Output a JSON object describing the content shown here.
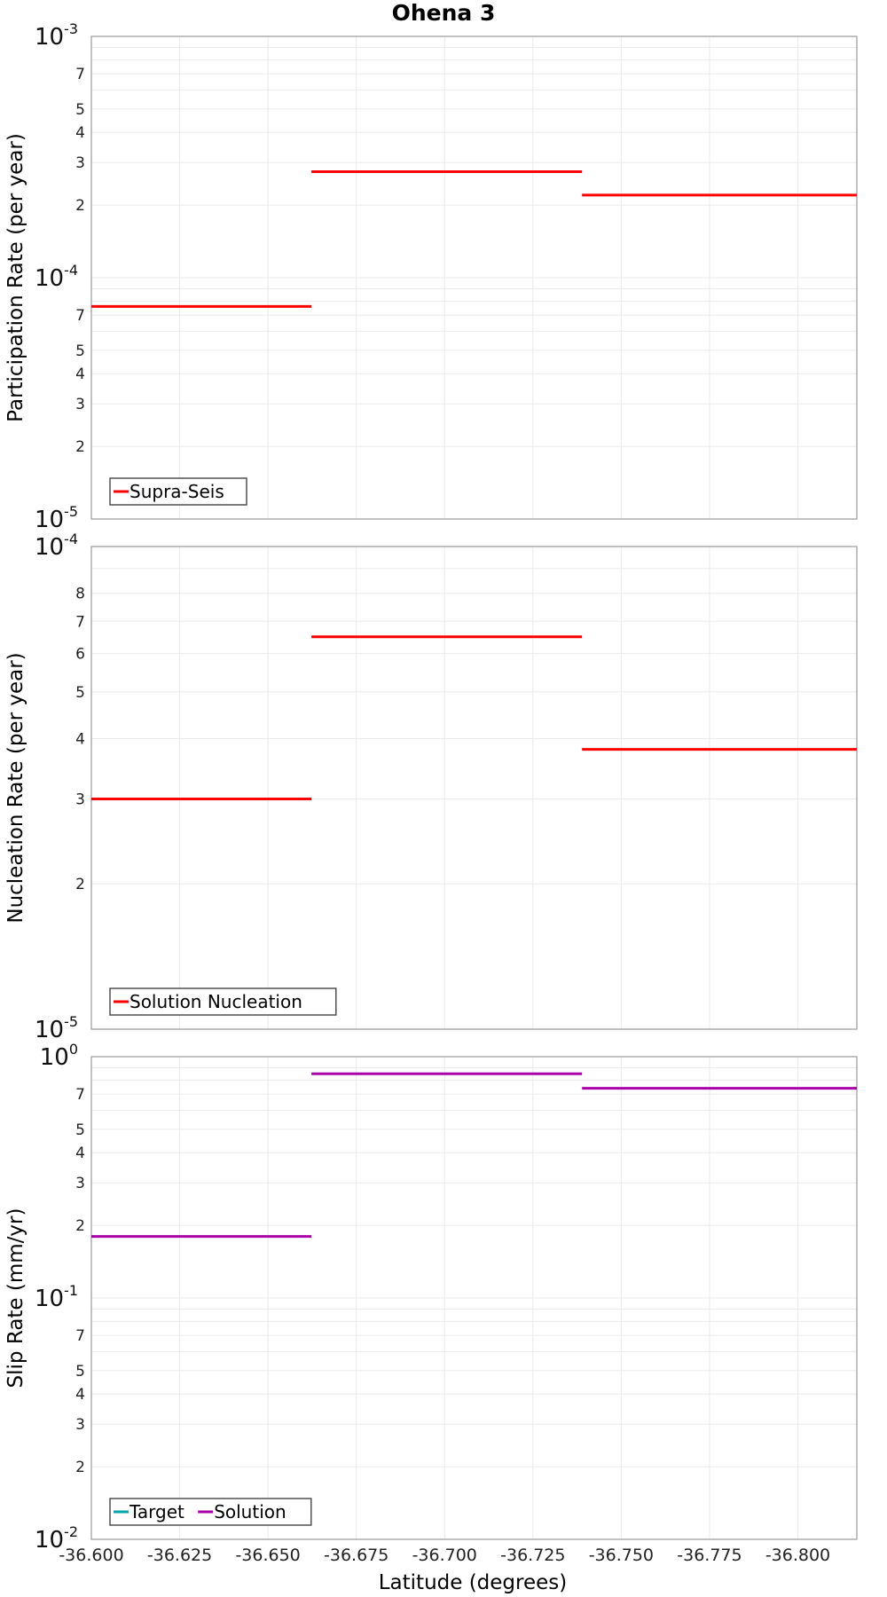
{
  "figure": {
    "title": "Ohena 3",
    "xlabel": "Latitude (degrees)"
  },
  "chart_data": [
    {
      "type": "line",
      "title": "Ohena 3",
      "xlabel": "Latitude (degrees)",
      "ylabel": "Participation Rate (per year)",
      "xlim": [
        -36.6,
        -36.8167
      ],
      "x_ticks": [
        "-36.600",
        "-36.625",
        "-36.650",
        "-36.675",
        "-36.700",
        "-36.725",
        "-36.750",
        "-36.775",
        "-36.800"
      ],
      "x_tick_values": [
        -36.6,
        -36.625,
        -36.65,
        -36.675,
        -36.7,
        -36.725,
        -36.75,
        -36.775,
        -36.8
      ],
      "yscale": "log",
      "ylim": [
        1e-05,
        0.001
      ],
      "grid": true,
      "legend_position": "bottom-left",
      "series": [
        {
          "name": "Supra-Seis",
          "color": "#ff0000",
          "segments": [
            {
              "x": [
                -36.6,
                -36.6623
              ],
              "y": 7.6e-05
            },
            {
              "x": [
                -36.6623,
                -36.7389
              ],
              "y": 0.000275
            },
            {
              "x": [
                -36.7389,
                -36.8167
              ],
              "y": 0.00022
            }
          ]
        }
      ]
    },
    {
      "type": "line",
      "xlabel": "Latitude (degrees)",
      "ylabel": "Nucleation Rate (per year)",
      "xlim": [
        -36.6,
        -36.8167
      ],
      "x_ticks": [
        "-36.600",
        "-36.625",
        "-36.650",
        "-36.675",
        "-36.700",
        "-36.725",
        "-36.750",
        "-36.775",
        "-36.800"
      ],
      "x_tick_values": [
        -36.6,
        -36.625,
        -36.65,
        -36.675,
        -36.7,
        -36.725,
        -36.75,
        -36.775,
        -36.8
      ],
      "yscale": "log",
      "ylim": [
        1e-05,
        0.0001
      ],
      "grid": true,
      "legend_position": "bottom-left",
      "series": [
        {
          "name": "Solution Nucleation",
          "color": "#ff0000",
          "segments": [
            {
              "x": [
                -36.6,
                -36.6623
              ],
              "y": 3e-05
            },
            {
              "x": [
                -36.6623,
                -36.7389
              ],
              "y": 6.5e-05
            },
            {
              "x": [
                -36.7389,
                -36.8167
              ],
              "y": 3.8e-05
            }
          ]
        }
      ]
    },
    {
      "type": "line",
      "xlabel": "Latitude (degrees)",
      "ylabel": "Slip Rate (mm/yr)",
      "xlim": [
        -36.6,
        -36.8167
      ],
      "x_ticks": [
        "-36.600",
        "-36.625",
        "-36.650",
        "-36.675",
        "-36.700",
        "-36.725",
        "-36.750",
        "-36.775",
        "-36.800"
      ],
      "x_tick_values": [
        -36.6,
        -36.625,
        -36.65,
        -36.675,
        -36.7,
        -36.725,
        -36.75,
        -36.775,
        -36.8
      ],
      "yscale": "log",
      "ylim": [
        0.01,
        1
      ],
      "grid": true,
      "legend_position": "bottom-left",
      "series": [
        {
          "name": "Target",
          "color": "#00aaaa",
          "segments": []
        },
        {
          "name": "Solution",
          "color": "#aa00aa",
          "segments": [
            {
              "x": [
                -36.6,
                -36.6623
              ],
              "y": 0.18
            },
            {
              "x": [
                -36.6623,
                -36.7389
              ],
              "y": 0.85
            },
            {
              "x": [
                -36.7389,
                -36.8167
              ],
              "y": 0.74
            }
          ]
        }
      ]
    }
  ]
}
